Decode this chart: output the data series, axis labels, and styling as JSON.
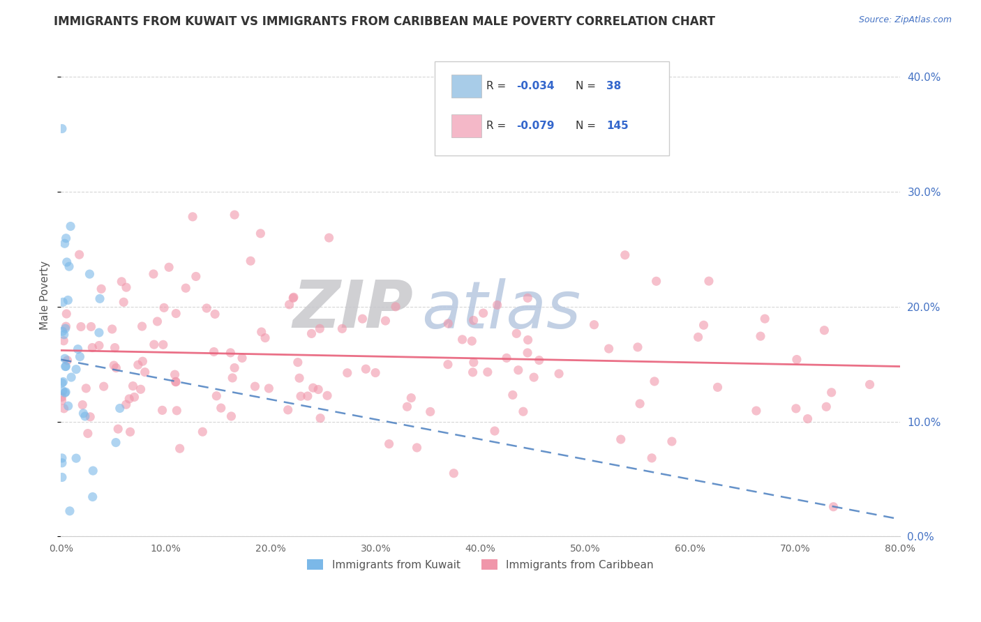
{
  "title": "IMMIGRANTS FROM KUWAIT VS IMMIGRANTS FROM CARIBBEAN MALE POVERTY CORRELATION CHART",
  "source": "Source: ZipAtlas.com",
  "ylabel": "Male Poverty",
  "xmin": 0.0,
  "xmax": 0.8,
  "ymin": 0.0,
  "ymax": 0.42,
  "yticks": [
    0.0,
    0.1,
    0.2,
    0.3,
    0.4
  ],
  "xticks": [
    0.0,
    0.1,
    0.2,
    0.3,
    0.4,
    0.5,
    0.6,
    0.7,
    0.8
  ],
  "kuwait_scatter_color": "#7bb8e8",
  "caribbean_scatter_color": "#f096aa",
  "kuwait_line_color": "#4a7fc0",
  "caribbean_line_color": "#e8607a",
  "kuwait_legend_color": "#a8cce8",
  "caribbean_legend_color": "#f4b8c8",
  "background_color": "#ffffff",
  "watermark_zip": "ZIP",
  "watermark_atlas": "atlas",
  "watermark_zip_color": "#c8c8cc",
  "watermark_atlas_color": "#b8c8e0",
  "title_color": "#333333",
  "title_fontsize": 12,
  "axis_label_color": "#555555",
  "tick_label_color": "#666666",
  "right_tick_color": "#4472c4",
  "grid_color": "#cccccc",
  "carib_line_start_y": 0.162,
  "carib_line_end_y": 0.148,
  "kuw_line_start_y": 0.154,
  "kuw_line_end_y": 0.015
}
